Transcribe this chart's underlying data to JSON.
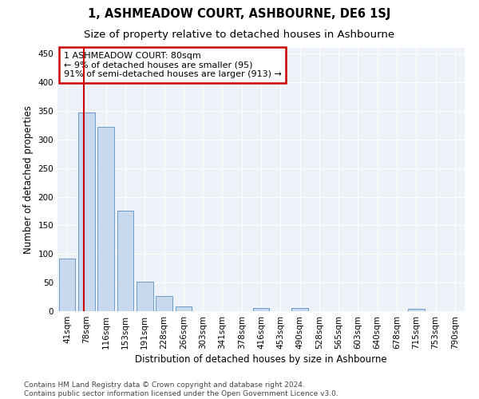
{
  "title": "1, ASHMEADOW COURT, ASHBOURNE, DE6 1SJ",
  "subtitle": "Size of property relative to detached houses in Ashbourne",
  "xlabel": "Distribution of detached houses by size in Ashbourne",
  "ylabel": "Number of detached properties",
  "bar_labels": [
    "41sqm",
    "78sqm",
    "116sqm",
    "153sqm",
    "191sqm",
    "228sqm",
    "266sqm",
    "303sqm",
    "341sqm",
    "378sqm",
    "416sqm",
    "453sqm",
    "490sqm",
    "528sqm",
    "565sqm",
    "603sqm",
    "640sqm",
    "678sqm",
    "715sqm",
    "753sqm",
    "790sqm"
  ],
  "bar_values": [
    92,
    347,
    322,
    175,
    52,
    26,
    9,
    0,
    0,
    0,
    5,
    0,
    6,
    0,
    0,
    0,
    0,
    0,
    4,
    0,
    0
  ],
  "bar_color": "#c8d9ed",
  "bar_edge_color": "#5a8fc4",
  "property_line_x": 0.87,
  "property_line_color": "#cc0000",
  "annotation_lines": [
    "1 ASHMEADOW COURT: 80sqm",
    "← 9% of detached houses are smaller (95)",
    "91% of semi-detached houses are larger (913) →"
  ],
  "annotation_box_color": "#cc0000",
  "ylim": [
    0,
    460
  ],
  "yticks": [
    0,
    50,
    100,
    150,
    200,
    250,
    300,
    350,
    400,
    450
  ],
  "background_color": "#edf1f8",
  "grid_color": "#ffffff",
  "footer_text": "Contains HM Land Registry data © Crown copyright and database right 2024.\nContains public sector information licensed under the Open Government Licence v3.0.",
  "title_fontsize": 10.5,
  "subtitle_fontsize": 9.5,
  "axis_label_fontsize": 8.5,
  "tick_fontsize": 7.5,
  "annotation_fontsize": 8,
  "footer_fontsize": 6.5
}
